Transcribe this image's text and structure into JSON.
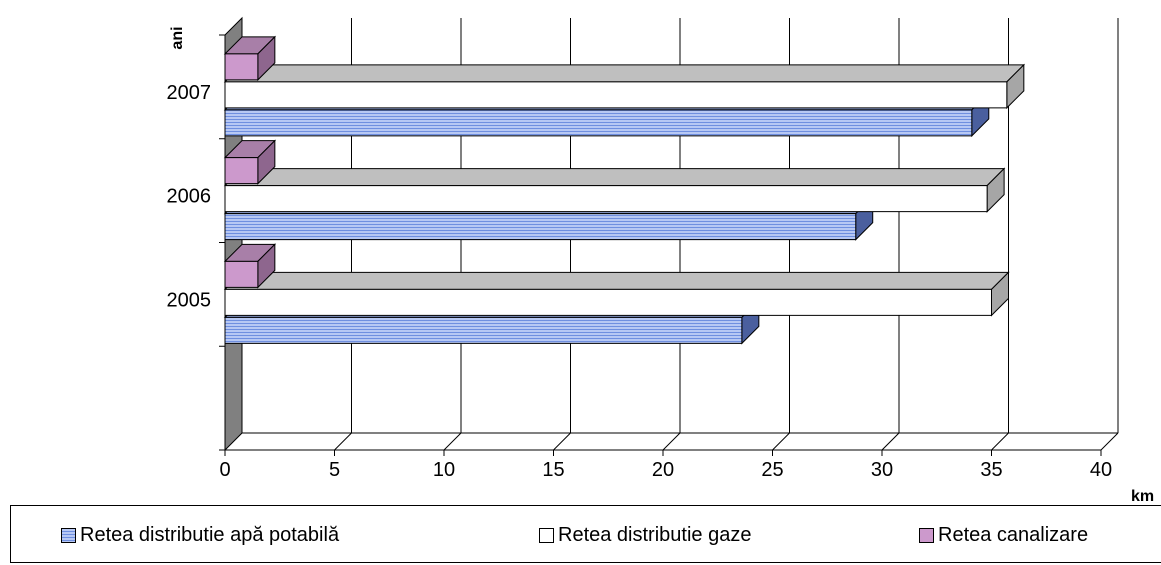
{
  "chart_data": {
    "type": "bar",
    "orientation": "horizontal",
    "three_d": true,
    "title": "",
    "xlabel": "km",
    "ylabel": "ani",
    "categories": [
      "2005",
      "2006",
      "2007"
    ],
    "xlim": [
      0,
      40
    ],
    "x_ticks": [
      "0",
      "5",
      "10",
      "15",
      "20",
      "25",
      "30",
      "35",
      "40"
    ],
    "grid": true,
    "legend_position": "bottom",
    "series": [
      {
        "name": "Retea distributie apă potabilă",
        "values": [
          23.6,
          28.8,
          34.1
        ],
        "color": "#b7c8f4"
      },
      {
        "name": "Retea distributie gaze",
        "values": [
          35.0,
          34.8,
          35.7
        ],
        "color": "#ffffff"
      },
      {
        "name": "Retea canalizare",
        "values": [
          1.5,
          1.5,
          1.5
        ],
        "color": "#cc99cc"
      }
    ]
  }
}
